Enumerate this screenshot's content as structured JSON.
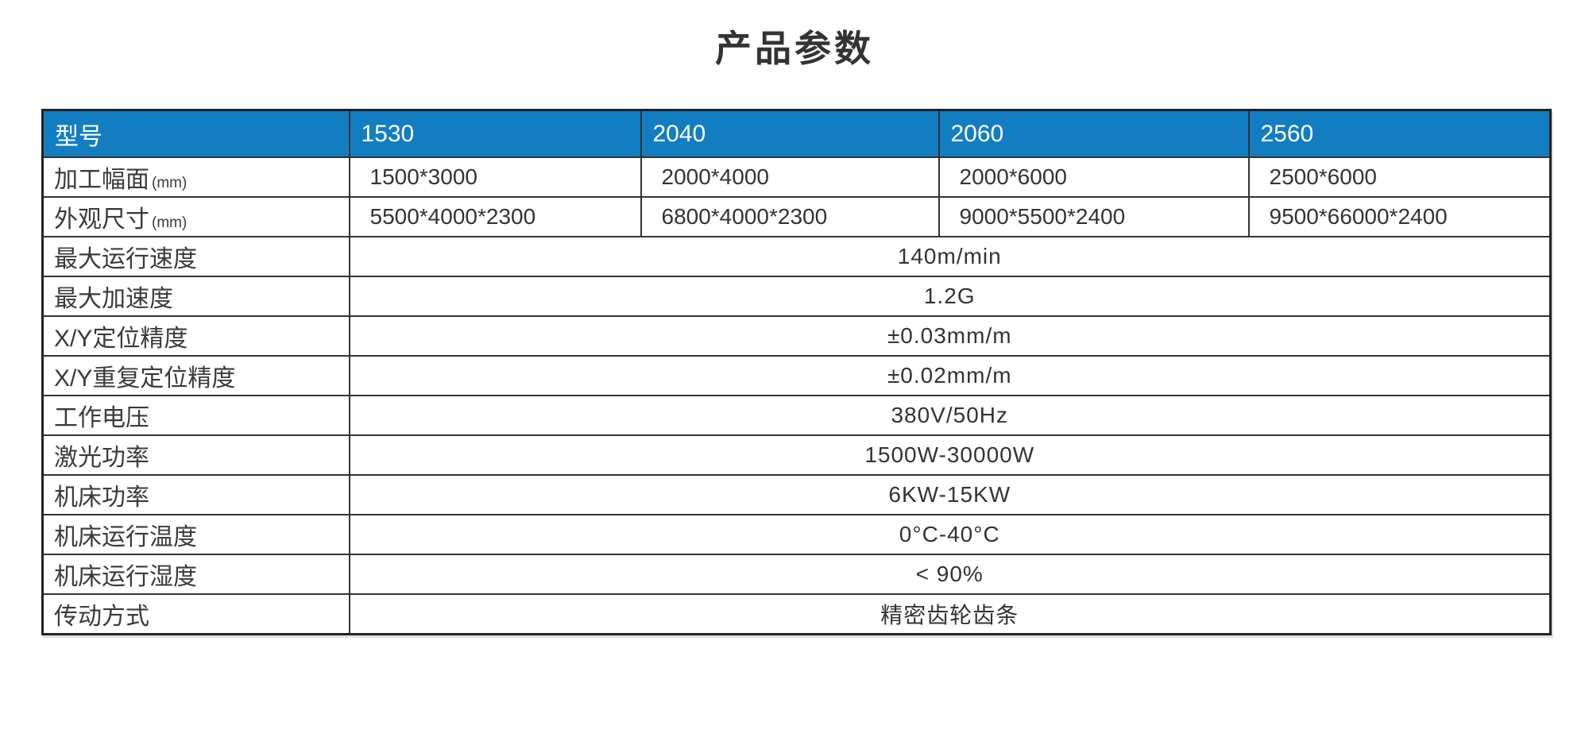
{
  "page": {
    "title": "产品参数"
  },
  "table": {
    "header": {
      "bg_color": "#137DC2",
      "text_color": "#ffffff",
      "cells": [
        "型号",
        "1530",
        "2040",
        "2060",
        "2560"
      ]
    },
    "rows": [
      {
        "type": "per-model",
        "label": "加工幅面",
        "label_suffix": "(mm)",
        "values": [
          "1500*3000",
          "2000*4000",
          "2000*6000",
          "2500*6000"
        ]
      },
      {
        "type": "per-model",
        "label": "外观尺寸",
        "label_suffix": "(mm)",
        "values": [
          "5500*4000*2300",
          "6800*4000*2300",
          "9000*5500*2400",
          "9500*66000*2400"
        ]
      },
      {
        "type": "span",
        "label": "最大运行速度",
        "label_suffix": "",
        "value": "140m/min"
      },
      {
        "type": "span",
        "label": "最大加速度",
        "label_suffix": "",
        "value": "1.2G"
      },
      {
        "type": "span",
        "label": "X/Y定位精度",
        "label_suffix": "",
        "value": "±0.03mm/m"
      },
      {
        "type": "span",
        "label": "X/Y重复定位精度",
        "label_suffix": "",
        "value": "±0.02mm/m"
      },
      {
        "type": "span",
        "label": "工作电压",
        "label_suffix": "",
        "value": "380V/50Hz"
      },
      {
        "type": "span",
        "label": "激光功率",
        "label_suffix": "",
        "value": "1500W-30000W"
      },
      {
        "type": "span",
        "label": "机床功率",
        "label_suffix": "",
        "value": "6KW-15KW"
      },
      {
        "type": "span",
        "label": "机床运行温度",
        "label_suffix": "",
        "value": "0°C-40°C"
      },
      {
        "type": "span",
        "label": "机床运行湿度",
        "label_suffix": "",
        "value": "< 90%"
      },
      {
        "type": "span",
        "label": "传动方式",
        "label_suffix": "",
        "value": "精密齿轮齿条"
      }
    ]
  }
}
